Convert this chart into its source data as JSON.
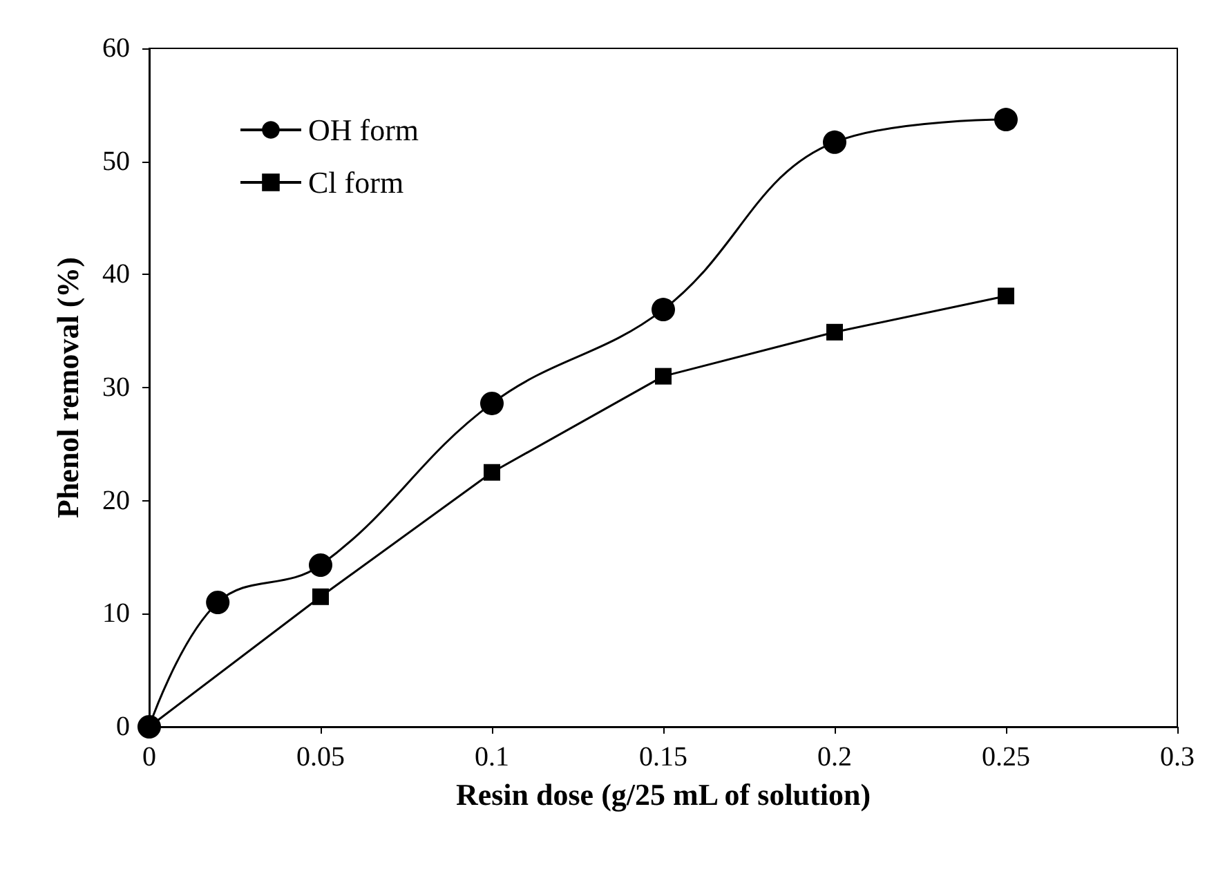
{
  "chart_data": {
    "type": "line",
    "xlabel": "Resin dose (g/25 mL of solution)",
    "ylabel": "Phenol removal (%)",
    "xlim": [
      0,
      0.3
    ],
    "xticks": [
      0,
      0.05,
      0.1,
      0.15,
      0.2,
      0.25,
      0.3
    ],
    "ylim": [
      0,
      60
    ],
    "yticks": [
      0,
      10,
      20,
      30,
      40,
      50,
      60
    ],
    "grid": false,
    "legend": "top left",
    "line_style": "solid",
    "series": [
      {
        "name": "OH form",
        "color": "#000000",
        "marker": "circle",
        "x": [
          0,
          0.02,
          0.05,
          0.1,
          0.15,
          0.2,
          0.25
        ],
        "values": [
          0,
          11.0,
          14.3,
          28.6,
          36.9,
          51.7,
          53.7
        ]
      },
      {
        "name": "Cl form",
        "color": "#000000",
        "marker": "square",
        "x": [
          0,
          0.05,
          0.1,
          0.15,
          0.2,
          0.25
        ],
        "values": [
          0,
          11.5,
          22.5,
          31.0,
          34.9,
          38.1
        ]
      }
    ]
  }
}
